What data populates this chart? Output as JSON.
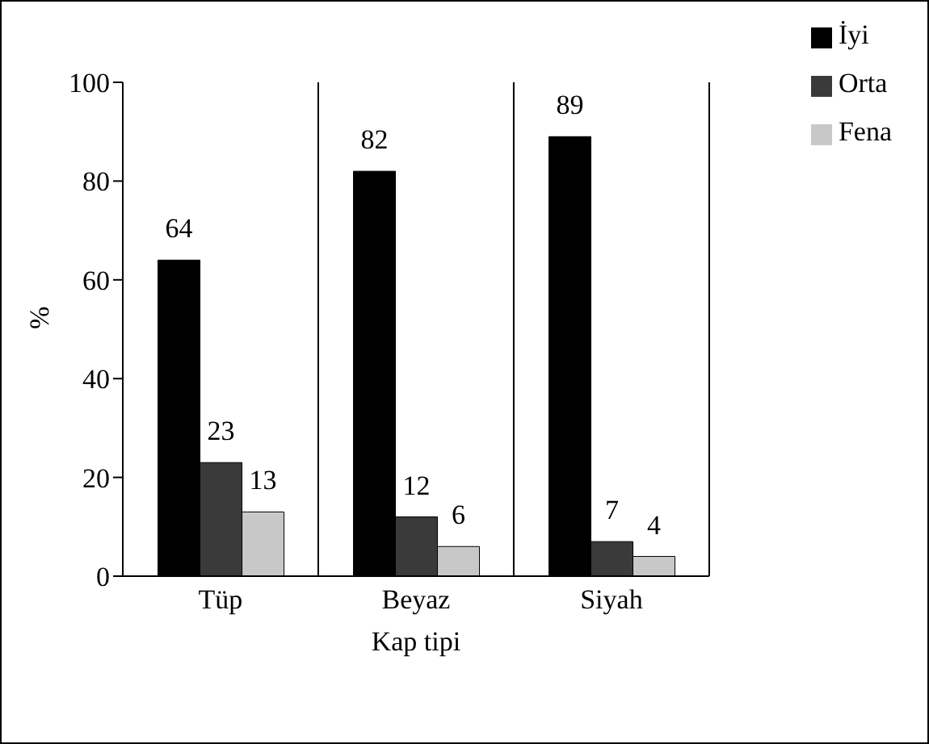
{
  "chart_data": {
    "type": "bar",
    "xlabel": "Kap tipi",
    "ylabel": "%",
    "categories": [
      "Tüp",
      "Beyaz",
      "Siyah"
    ],
    "series": [
      {
        "name": "İyi",
        "color": "#000000",
        "values": [
          64,
          82,
          89
        ]
      },
      {
        "name": "Orta",
        "color": "#3a3a3a",
        "values": [
          23,
          12,
          7
        ]
      },
      {
        "name": "Fena",
        "color": "#c8c8c8",
        "values": [
          13,
          6,
          4
        ]
      }
    ],
    "ylim": [
      0,
      100
    ],
    "yticks": [
      0,
      20,
      40,
      60,
      80,
      100
    ],
    "grid": "x",
    "legend": "top right",
    "data_labels": true
  }
}
